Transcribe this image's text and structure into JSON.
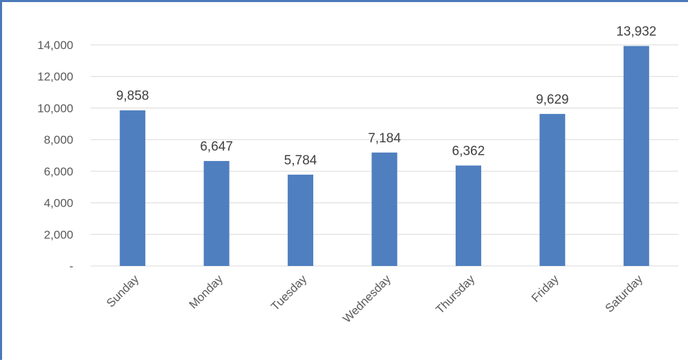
{
  "chart_data": {
    "type": "bar",
    "categories": [
      "Sunday",
      "Monday",
      "Tuesday",
      "Wednesday",
      "Thursday",
      "Friday",
      "Saturday"
    ],
    "values": [
      9858,
      6647,
      5784,
      7184,
      6362,
      9629,
      13932
    ],
    "data_labels": [
      "9,858",
      "6,647",
      "5,784",
      "7,184",
      "6,362",
      "9,629",
      "13,932"
    ],
    "yticks": [
      0,
      2000,
      4000,
      6000,
      8000,
      10000,
      12000,
      14000
    ],
    "ytick_labels": [
      "-",
      "2,000",
      "4,000",
      "6,000",
      "8,000",
      "10,000",
      "12,000",
      "14,000"
    ],
    "ylim": [
      0,
      14000
    ],
    "grid": true,
    "title": "",
    "xlabel": "",
    "ylabel": "",
    "bar_color": "#4f7fbf",
    "frame_color": "#4a78b8"
  }
}
